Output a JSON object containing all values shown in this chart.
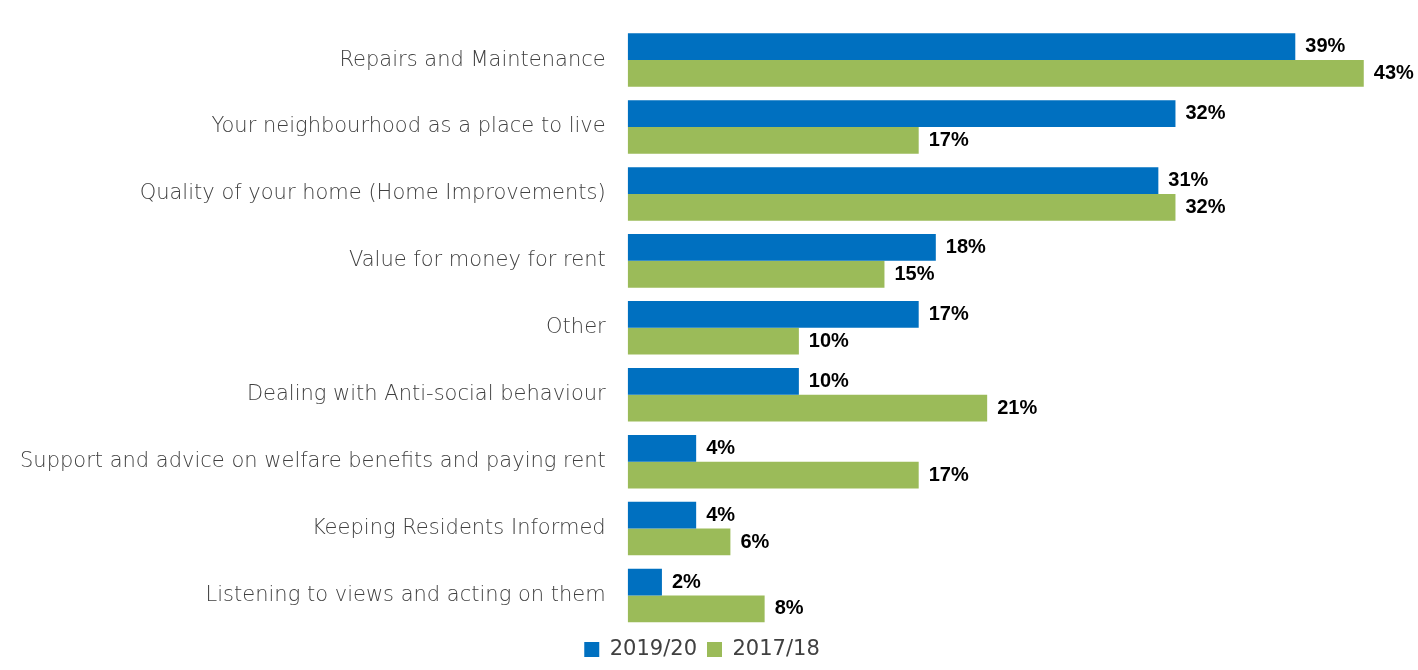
{
  "chart_data": {
    "type": "bar",
    "orientation": "horizontal",
    "categories": [
      "Repairs and Maintenance",
      "Your neighbourhood as a place to live",
      "Quality of your home (Home Improvements)",
      "Value for money for rent",
      "Other",
      "Dealing with Anti-social behaviour",
      "Support and advice on welfare benefits and paying rent",
      "Keeping Residents Informed",
      "Listening to views and acting on them"
    ],
    "series": [
      {
        "name": "2019/20",
        "color": "#0070c0",
        "values": [
          39,
          32,
          31,
          18,
          17,
          10,
          4,
          4,
          2
        ],
        "value_labels": [
          "39%",
          "32%",
          "31%",
          "18%",
          "17%",
          "10%",
          "4%",
          "4%",
          "2%"
        ]
      },
      {
        "name": "2017/18",
        "color": "#9bbb59",
        "values": [
          43,
          17,
          32,
          15,
          10,
          21,
          17,
          6,
          8
        ],
        "value_labels": [
          "43%",
          "17%",
          "32%",
          "15%",
          "10%",
          "21%",
          "17%",
          "6%",
          "8%"
        ]
      }
    ],
    "legend": "bottom",
    "tick_labels": "y"
  }
}
